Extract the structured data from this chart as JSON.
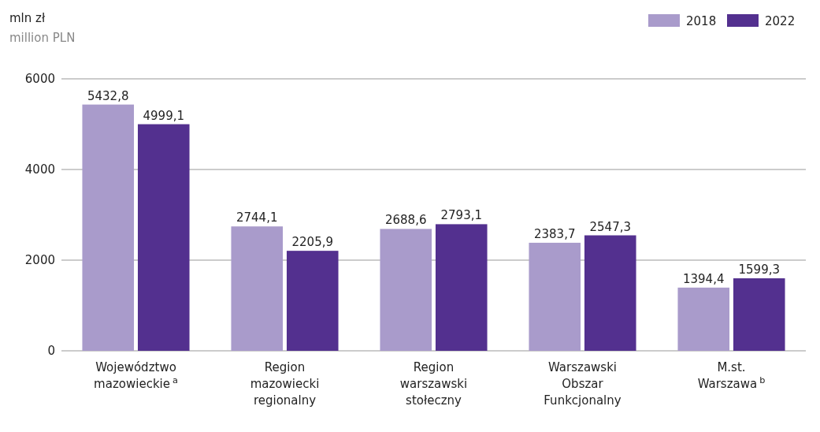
{
  "chart_data": {
    "type": "bar",
    "ylabel": "mln zł",
    "annotations": [
      "million PLN"
    ],
    "categories": [
      "Województwo mazowieckie$^{a}$",
      "Region mazowiecki regionalny",
      "Region warszawski stołeczny",
      "Warszawski Obszar Funkcjonalny",
      "M.st. Warszawa$^{b}$"
    ],
    "series": [
      {
        "name": "2018",
        "color": "#a99bcb",
        "values": [
          5432.8,
          2744.1,
          2688.6,
          2383.7,
          1394.4
        ],
        "value_labels": [
          "5432,8",
          "2744,1",
          "2688,6",
          "2383,7",
          "1394,4"
        ]
      },
      {
        "name": "2022",
        "color": "#53308f",
        "values": [
          4999.1,
          2205.9,
          2793.1,
          2547.3,
          1599.3
        ],
        "value_labels": [
          "4999,1",
          "2205,9",
          "2793,1",
          "2547,3",
          "1599,3"
        ]
      }
    ],
    "ylim": [
      0,
      6000
    ],
    "yticks": [
      0,
      2000,
      4000,
      6000
    ],
    "grid": "y",
    "legend": "top right"
  }
}
